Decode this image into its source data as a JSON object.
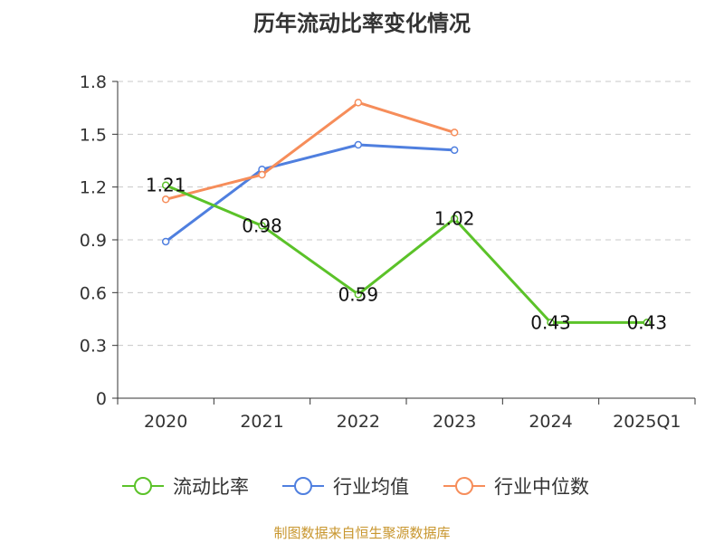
{
  "chart_data": {
    "type": "line",
    "title": "历年流动比率变化情况",
    "categories": [
      "2020",
      "2021",
      "2022",
      "2023",
      "2024",
      "2025Q1"
    ],
    "ylim": [
      0,
      1.8
    ],
    "yticks": [
      "0",
      "0.3",
      "0.6",
      "0.9",
      "1.2",
      "1.5",
      "1.8"
    ],
    "grid": true,
    "legend_position": "bottom",
    "series": [
      {
        "name": "流动比率",
        "color": "#5bc229",
        "values": [
          1.21,
          0.98,
          0.59,
          1.02,
          0.43,
          0.43
        ],
        "labels": [
          "1.21",
          "0.98",
          "0.59",
          "1.02",
          "0.43",
          "0.43"
        ]
      },
      {
        "name": "行业均值",
        "color": "#4f7fdf",
        "values": [
          0.89,
          1.3,
          1.44,
          1.41,
          null,
          null
        ]
      },
      {
        "name": "行业中位数",
        "color": "#f68d5a",
        "values": [
          1.13,
          1.27,
          1.68,
          1.51,
          null,
          null
        ]
      }
    ]
  },
  "source_note": "制图数据来自恒生聚源数据库"
}
